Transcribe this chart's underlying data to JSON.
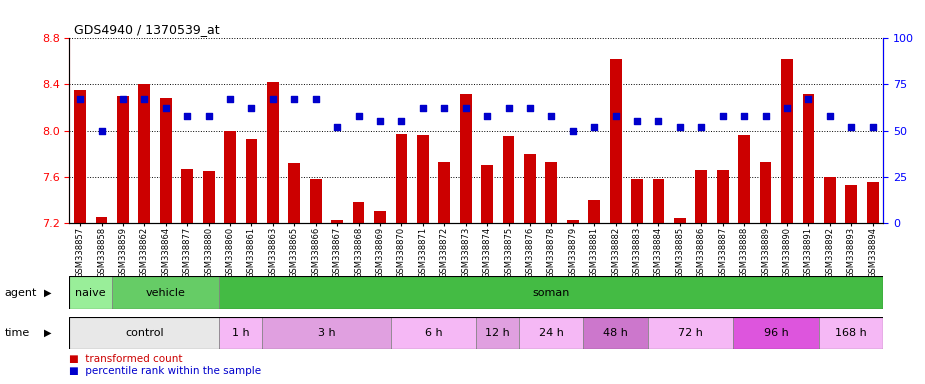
{
  "title": "GDS4940 / 1370539_at",
  "samples": [
    "GSM338857",
    "GSM338858",
    "GSM338859",
    "GSM338862",
    "GSM338864",
    "GSM338877",
    "GSM338880",
    "GSM338860",
    "GSM338861",
    "GSM338863",
    "GSM338865",
    "GSM338866",
    "GSM338867",
    "GSM338868",
    "GSM338869",
    "GSM338870",
    "GSM338871",
    "GSM338872",
    "GSM338873",
    "GSM338874",
    "GSM338875",
    "GSM338876",
    "GSM338878",
    "GSM338879",
    "GSM338881",
    "GSM338882",
    "GSM338883",
    "GSM338884",
    "GSM338885",
    "GSM338886",
    "GSM338887",
    "GSM338888",
    "GSM338889",
    "GSM338890",
    "GSM338891",
    "GSM338892",
    "GSM338893",
    "GSM338894"
  ],
  "bar_values": [
    8.35,
    7.25,
    8.3,
    8.4,
    8.28,
    7.67,
    7.65,
    8.0,
    7.93,
    8.42,
    7.72,
    7.58,
    7.22,
    7.38,
    7.3,
    7.97,
    7.96,
    7.73,
    8.32,
    7.7,
    7.95,
    7.8,
    7.73,
    7.22,
    7.4,
    8.62,
    7.58,
    7.58,
    7.24,
    7.66,
    7.66,
    7.96,
    7.73,
    8.62,
    8.32,
    7.6,
    7.53,
    7.55
  ],
  "dot_values_pct": [
    67,
    50,
    67,
    67,
    62,
    58,
    58,
    67,
    62,
    67,
    67,
    67,
    52,
    58,
    55,
    55,
    62,
    62,
    62,
    58,
    62,
    62,
    58,
    50,
    52,
    58,
    55,
    55,
    52,
    52,
    58,
    58,
    58,
    62,
    67,
    58,
    52,
    52
  ],
  "ylim": [
    7.2,
    8.8
  ],
  "yticks_left": [
    7.2,
    7.6,
    8.0,
    8.4,
    8.8
  ],
  "yticks_right": [
    0,
    25,
    50,
    75,
    100
  ],
  "bar_color": "#cc0000",
  "dot_color": "#0000cc",
  "bar_bottom": 7.2,
  "agent_groups": [
    {
      "label": "naive",
      "start": 0,
      "end": 2,
      "color": "#99ee99"
    },
    {
      "label": "vehicle",
      "start": 2,
      "end": 7,
      "color": "#66cc66"
    },
    {
      "label": "soman",
      "start": 7,
      "end": 38,
      "color": "#44bb44"
    }
  ],
  "time_groups": [
    {
      "label": "control",
      "start": 0,
      "end": 7,
      "color": "#e8e8e8"
    },
    {
      "label": "1 h",
      "start": 7,
      "end": 9,
      "color": "#f5b8f5"
    },
    {
      "label": "3 h",
      "start": 9,
      "end": 15,
      "color": "#e0a0e0"
    },
    {
      "label": "6 h",
      "start": 15,
      "end": 19,
      "color": "#f5b8f5"
    },
    {
      "label": "12 h",
      "start": 19,
      "end": 21,
      "color": "#e0a0e0"
    },
    {
      "label": "24 h",
      "start": 21,
      "end": 24,
      "color": "#f5b8f5"
    },
    {
      "label": "48 h",
      "start": 24,
      "end": 27,
      "color": "#cc77cc"
    },
    {
      "label": "72 h",
      "start": 27,
      "end": 31,
      "color": "#f5b8f5"
    },
    {
      "label": "96 h",
      "start": 31,
      "end": 35,
      "color": "#dd55dd"
    },
    {
      "label": "168 h",
      "start": 35,
      "end": 38,
      "color": "#f5b8f5"
    }
  ],
  "legend_bar_label": "transformed count",
  "legend_dot_label": "percentile rank within the sample"
}
